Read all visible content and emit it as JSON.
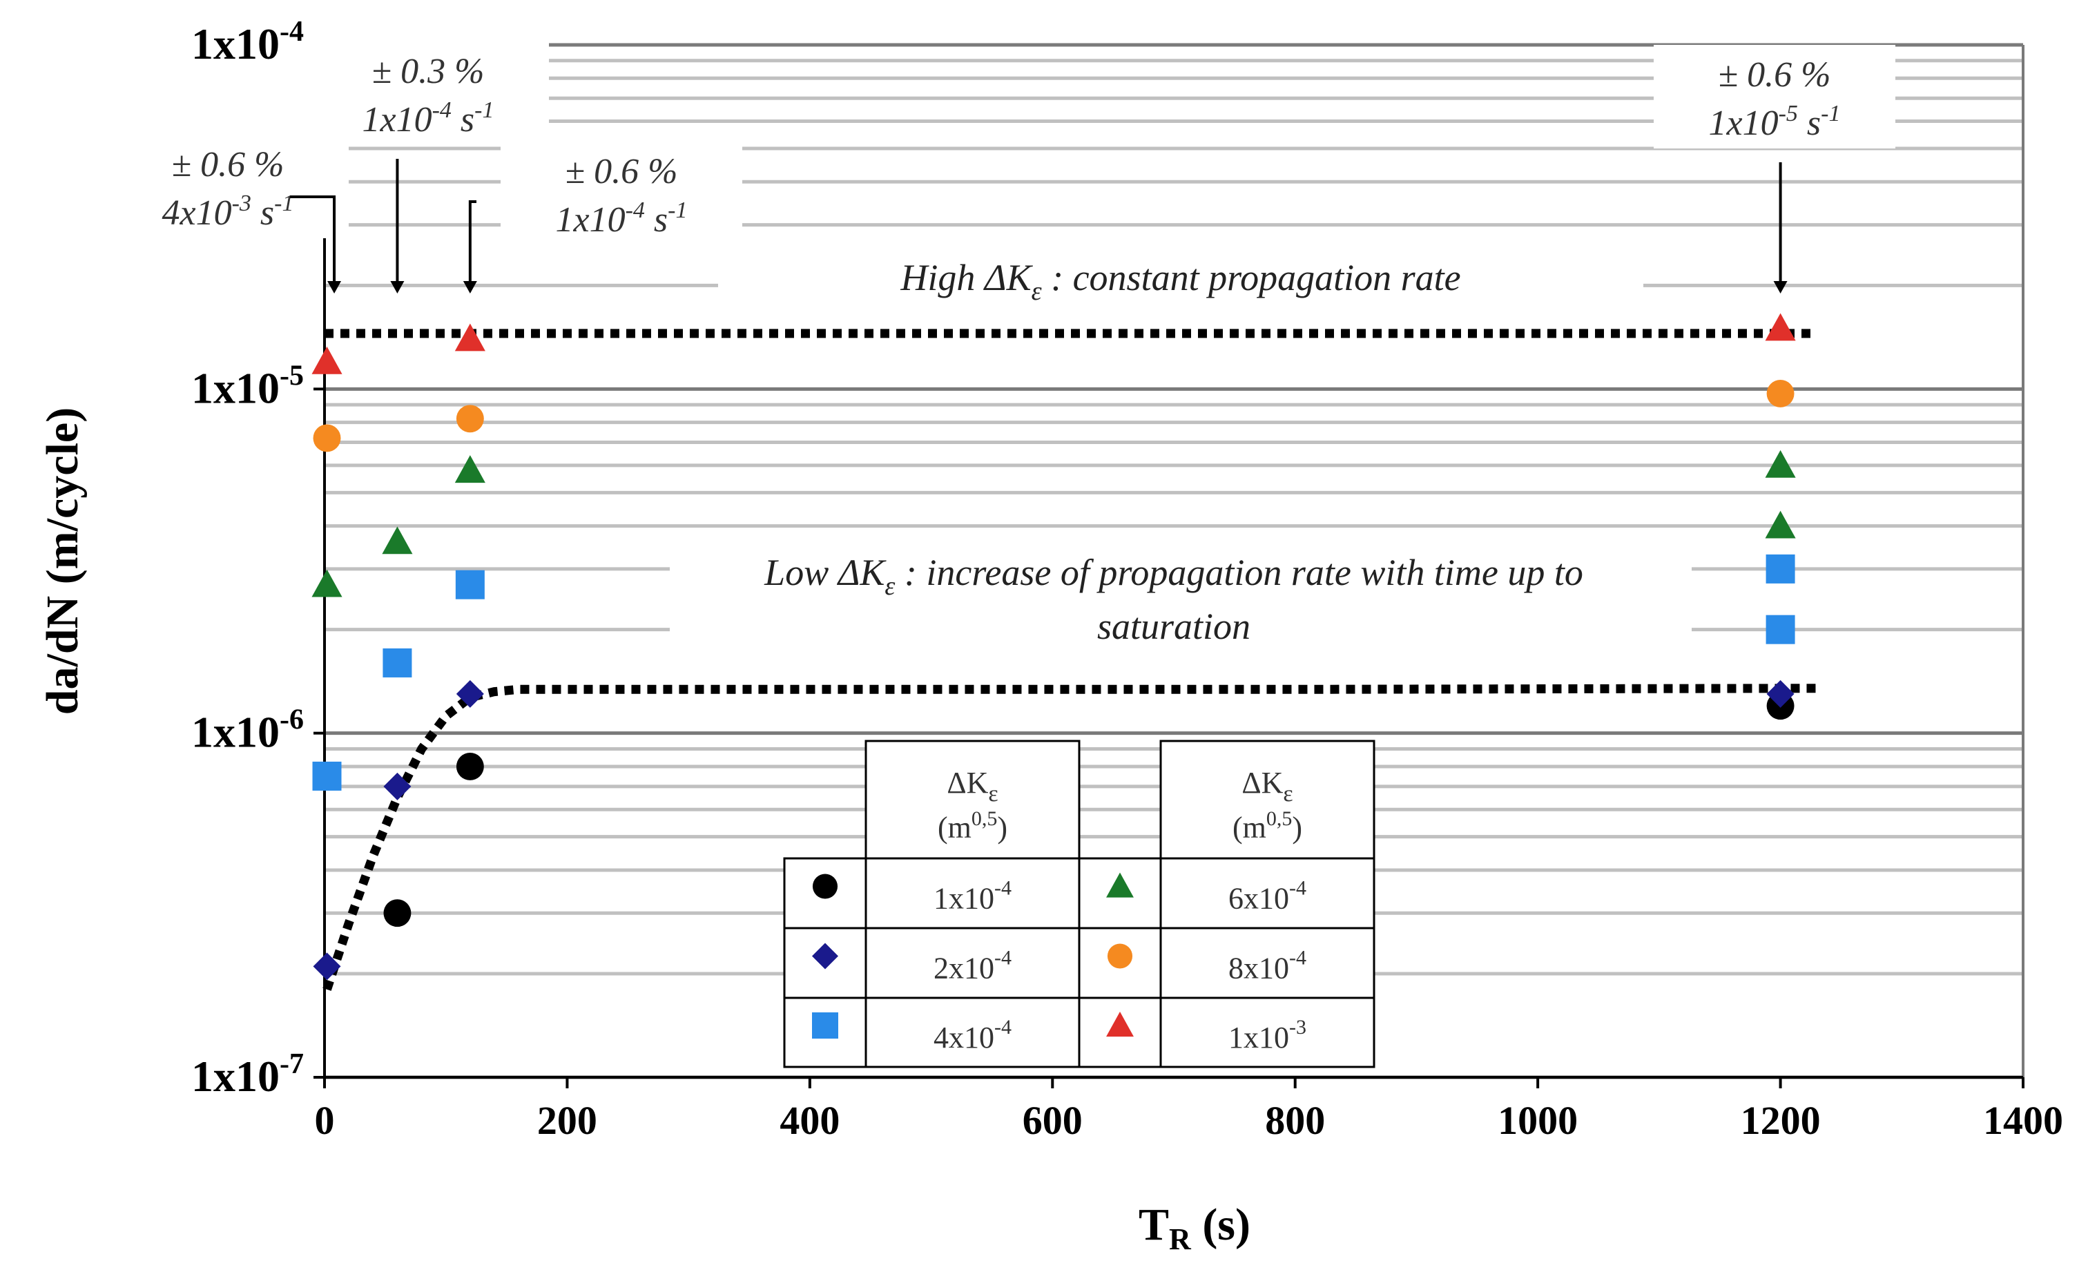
{
  "chart_data": {
    "type": "scatter",
    "yscale": "log",
    "xlabel_main": "T",
    "xlabel_sub": "R",
    "xlabel_unit": " (s)",
    "ylabel": "da/dN (m/cycle)",
    "xlim": [
      0,
      1400
    ],
    "ylim": [
      1e-07,
      0.0001
    ],
    "x_ticks": [
      "0",
      "200",
      "400",
      "600",
      "800",
      "1000",
      "1200",
      "1400"
    ],
    "y_ticks": [
      {
        "value": 1e-07,
        "base": "1x10",
        "exp": "-7"
      },
      {
        "value": 1e-06,
        "base": "1x10",
        "exp": "-6"
      },
      {
        "value": 1e-05,
        "base": "1x10",
        "exp": "-5"
      },
      {
        "value": 0.0001,
        "base": "1x10",
        "exp": "-4"
      }
    ],
    "series": [
      {
        "name": "1x10-4",
        "label_base": "1x10",
        "label_exp": "-4",
        "marker": "circle",
        "color": "#000000",
        "points": [
          [
            60,
            3e-07
          ],
          [
            120,
            8e-07
          ],
          [
            1200,
            1.2e-06
          ]
        ]
      },
      {
        "name": "2x10-4",
        "label_base": "2x10",
        "label_exp": "-4",
        "marker": "diamond",
        "color": "#1a1a8c",
        "points": [
          [
            2,
            2.1e-07
          ],
          [
            60,
            7e-07
          ],
          [
            120,
            1.3e-06
          ],
          [
            1200,
            1.3e-06
          ]
        ]
      },
      {
        "name": "4x10-4",
        "label_base": "4x10",
        "label_exp": "-4",
        "marker": "square",
        "color": "#2a8be8",
        "points": [
          [
            2,
            7.5e-07
          ],
          [
            60,
            1.6e-06
          ],
          [
            120,
            2.7e-06
          ],
          [
            1200,
            2e-06
          ],
          [
            1200,
            3e-06
          ]
        ]
      },
      {
        "name": "6x10-4",
        "label_base": "6x10",
        "label_exp": "-4",
        "marker": "triangle",
        "color": "#1a7a2a",
        "points": [
          [
            2,
            2.7e-06
          ],
          [
            60,
            3.6e-06
          ],
          [
            120,
            5.8e-06
          ],
          [
            1200,
            4e-06
          ],
          [
            1200,
            6e-06
          ]
        ]
      },
      {
        "name": "8x10-4",
        "label_base": "8x10",
        "label_exp": "-4",
        "marker": "circle",
        "color": "#f58a20",
        "points": [
          [
            2,
            7.2e-06
          ],
          [
            120,
            8.2e-06
          ],
          [
            1200,
            9.7e-06
          ]
        ]
      },
      {
        "name": "1x10-3",
        "label_base": "1x10",
        "label_exp": "-3",
        "marker": "triangle",
        "color": "#e0302a",
        "points": [
          [
            2,
            1.2e-05
          ],
          [
            120,
            1.4e-05
          ],
          [
            1200,
            1.5e-05
          ]
        ]
      }
    ],
    "trend_lines": [
      {
        "name": "high-dk-constant",
        "points": [
          [
            0,
            1.45e-05
          ],
          [
            1230,
            1.45e-05
          ]
        ]
      },
      {
        "name": "low-dk-saturation",
        "points": [
          [
            2,
            1.8e-07
          ],
          [
            20,
            2.8e-07
          ],
          [
            40,
            4.4e-07
          ],
          [
            60,
            6.5e-07
          ],
          [
            80,
            9e-07
          ],
          [
            100,
            1.12e-06
          ],
          [
            120,
            1.27e-06
          ],
          [
            140,
            1.32e-06
          ],
          [
            160,
            1.34e-06
          ],
          [
            400,
            1.34e-06
          ],
          [
            800,
            1.34e-06
          ],
          [
            1230,
            1.35e-06
          ]
        ]
      }
    ],
    "arrows": [
      {
        "name": "arrow-0",
        "x": 8,
        "lines": [
          "± 0.6 %",
          "4x10-3 s-1"
        ]
      },
      {
        "name": "arrow-60",
        "x": 60,
        "lines": [
          "± 0.3 %",
          "1x10-4 s-1"
        ]
      },
      {
        "name": "arrow-120",
        "x": 120,
        "lines": [
          "± 0.6 %",
          "1x10-4 s-1"
        ]
      },
      {
        "name": "arrow-1200",
        "x": 1200,
        "lines": [
          "± 0.6 %",
          "1x10-5 s-1"
        ]
      }
    ],
    "annotations": {
      "high": "High ΔK",
      "high_sub": "ε",
      "high_rest": " : constant propagation rate",
      "low": "Low ΔK",
      "low_sub": "ε",
      "low_rest": " : increase of propagation rate with time up to",
      "low_line2": "saturation"
    },
    "legend": {
      "header_symbol": "ΔK",
      "header_sub": "ε",
      "header_unit_base": "(m",
      "header_unit_exp": "0,5",
      "header_unit_close": ")"
    }
  }
}
